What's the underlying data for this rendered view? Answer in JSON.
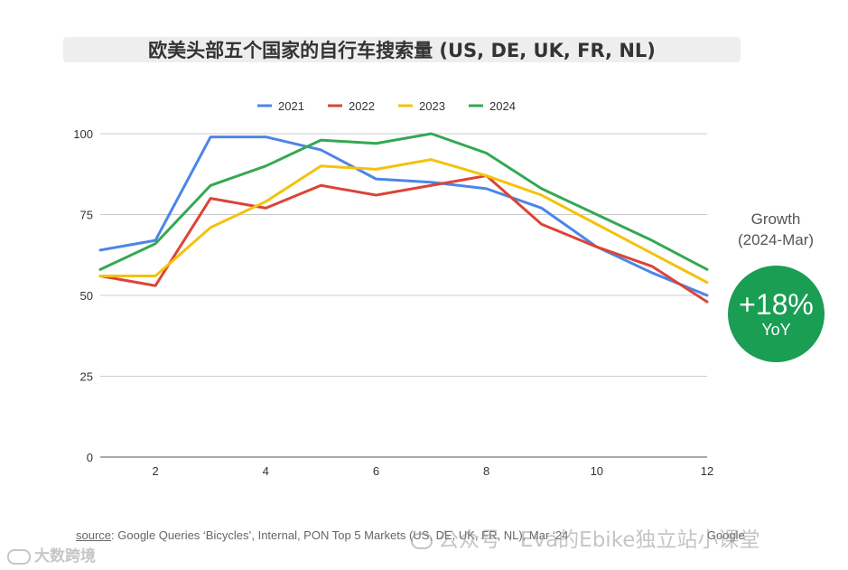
{
  "title": "欧美头部五个国家的自行车搜索量 (US, DE, UK, FR, NL)",
  "growth": {
    "label": "Growth",
    "period": "(2024-Mar)",
    "value": "+18%",
    "unit": "YoY",
    "color": "#1a9e53"
  },
  "footer": {
    "source_link": "source",
    "source_text": ": Google Queries ‘Bicycles’, Internal, PON Top 5 Markets (US, DE, UK, FR, NL), Mar ‘24",
    "brand": "Google"
  },
  "watermark": "公众号 · Eva的Ebike独立站小课堂",
  "watermark2": "大数跨境",
  "chart_data": {
    "type": "line",
    "x": [
      1,
      2,
      3,
      4,
      5,
      6,
      7,
      8,
      9,
      10,
      11,
      12
    ],
    "xlim": [
      1,
      12
    ],
    "ylim": [
      0,
      100
    ],
    "xticks": [
      2,
      4,
      6,
      8,
      10,
      12
    ],
    "yticks": [
      0,
      25,
      50,
      75,
      100
    ],
    "grid": "horizontal",
    "legend_position": "top",
    "series": [
      {
        "name": "2021",
        "color": "#4a86e8",
        "values": [
          64,
          67,
          99,
          99,
          95,
          86,
          85,
          83,
          77,
          65,
          57,
          50
        ]
      },
      {
        "name": "2022",
        "color": "#db4437",
        "values": [
          56,
          53,
          80,
          77,
          84,
          81,
          84,
          87,
          72,
          65,
          59,
          48
        ]
      },
      {
        "name": "2023",
        "color": "#f4c20d",
        "values": [
          56,
          56,
          71,
          79,
          90,
          89,
          92,
          87,
          81,
          72,
          63,
          54
        ]
      },
      {
        "name": "2024",
        "color": "#34a853",
        "values": [
          58,
          66,
          84,
          90,
          98,
          97,
          100,
          94,
          83,
          75,
          67,
          58
        ]
      }
    ]
  }
}
